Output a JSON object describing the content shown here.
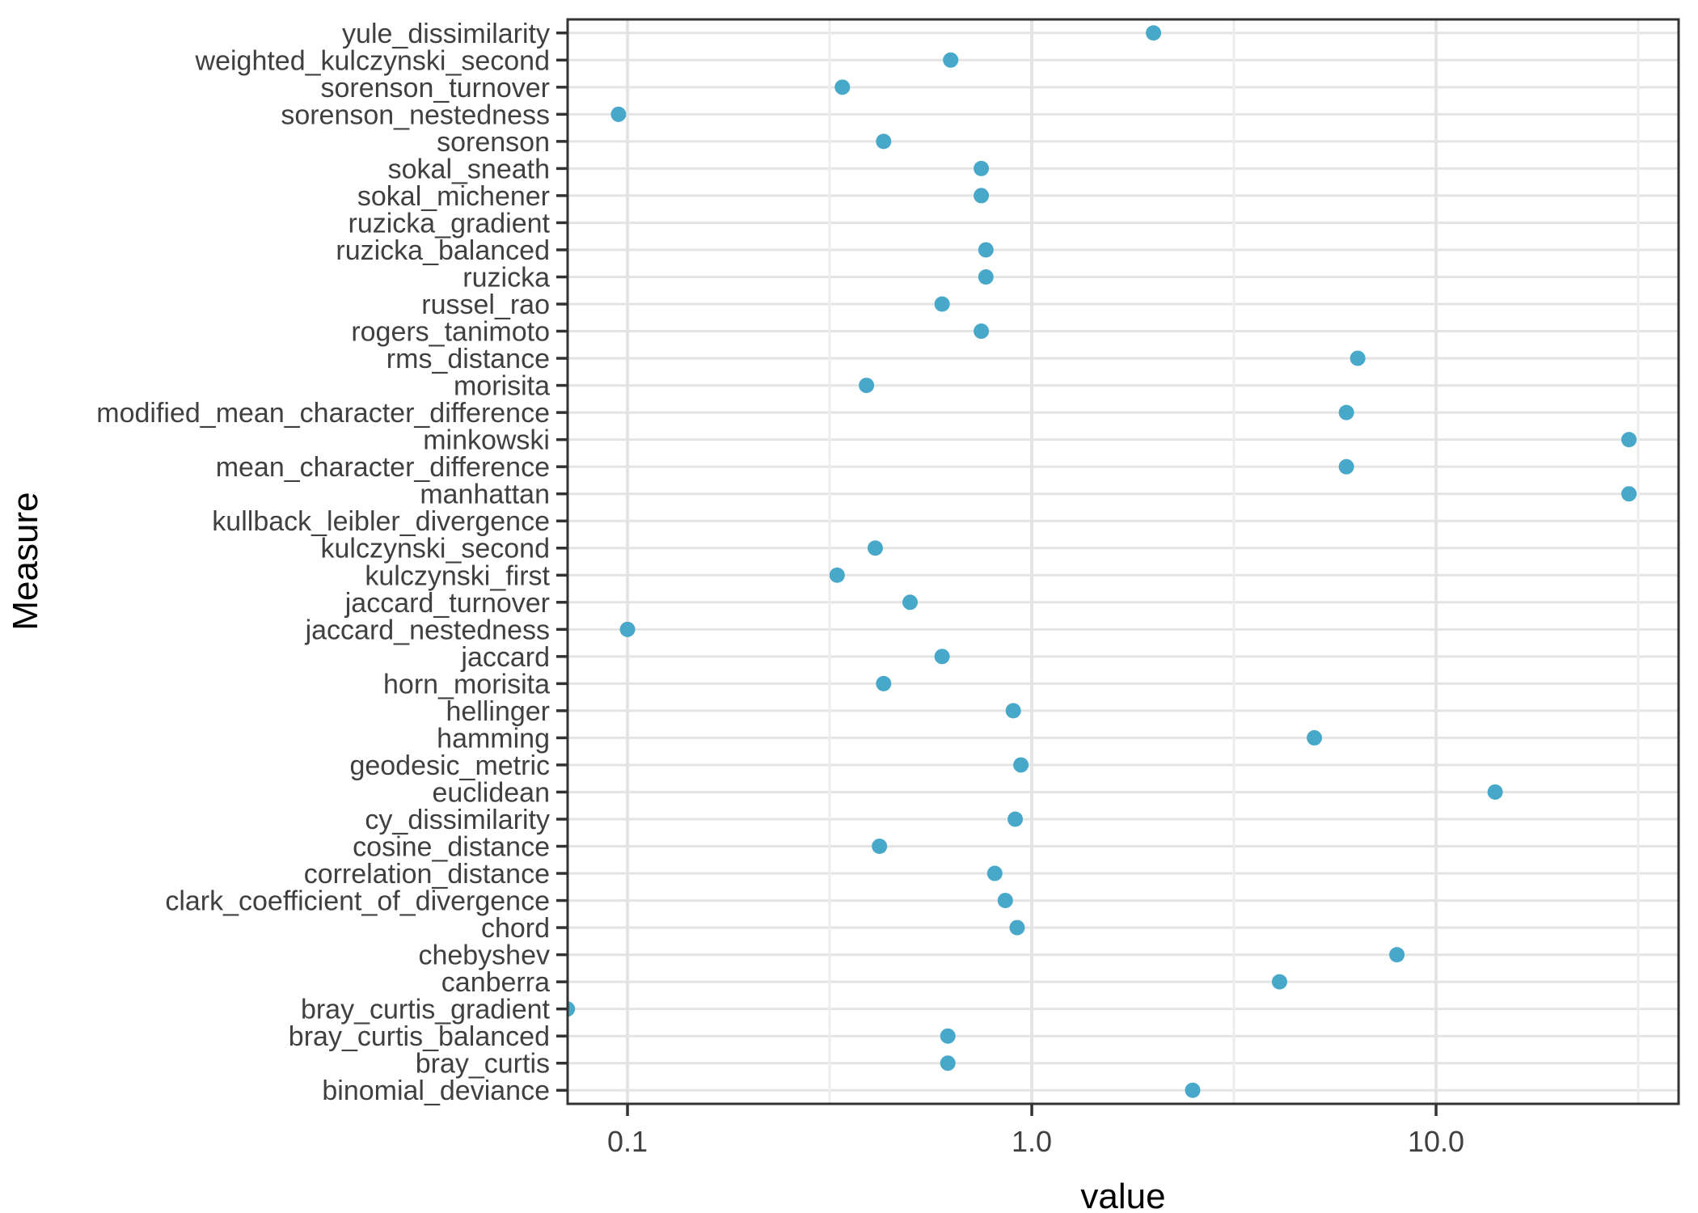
{
  "chart_data": {
    "type": "scatter",
    "variant": "horizontal-dot-plot",
    "title": "",
    "xlabel": "value",
    "ylabel": "Measure",
    "x_scale": "log10",
    "x_tick_labels": [
      "0.1",
      "1.0",
      "10.0"
    ],
    "x_tick_values": [
      0.1,
      1.0,
      10.0
    ],
    "x_minor_tick_values": [
      0.3162,
      3.162,
      31.62
    ],
    "x_range": [
      0.0711,
      39.8
    ],
    "grid": "major-and-minor",
    "legend": "none",
    "categories": [
      "yule_dissimilarity",
      "weighted_kulczynski_second",
      "sorenson_turnover",
      "sorenson_nestedness",
      "sorenson",
      "sokal_sneath",
      "sokal_michener",
      "ruzicka_gradient",
      "ruzicka_balanced",
      "ruzicka",
      "russel_rao",
      "rogers_tanimoto",
      "rms_distance",
      "morisita",
      "modified_mean_character_difference",
      "minkowski",
      "mean_character_difference",
      "manhattan",
      "kullback_leibler_divergence",
      "kulczynski_second",
      "kulczynski_first",
      "jaccard_turnover",
      "jaccard_nestedness",
      "jaccard",
      "horn_morisita",
      "hellinger",
      "hamming",
      "geodesic_metric",
      "euclidean",
      "cy_dissimilarity",
      "cosine_distance",
      "correlation_distance",
      "clark_coefficient_of_divergence",
      "chord",
      "chebyshev",
      "canberra",
      "bray_curtis_gradient",
      "bray_curtis_balanced",
      "bray_curtis",
      "binomial_deviance"
    ],
    "values": [
      2.0,
      0.63,
      0.34,
      0.095,
      0.43,
      0.75,
      0.75,
      null,
      0.77,
      0.77,
      0.6,
      0.75,
      6.4,
      0.39,
      6.0,
      30,
      6.0,
      30,
      null,
      0.41,
      0.33,
      0.5,
      0.1,
      0.6,
      0.43,
      0.9,
      5.0,
      0.94,
      14,
      0.91,
      0.42,
      0.81,
      0.86,
      0.92,
      8.0,
      4.1,
      0.071,
      0.62,
      0.62,
      2.5
    ],
    "colors": {
      "point": "#47A8C9",
      "panel_border": "#333333",
      "tick_mark": "#333333",
      "grid_major": "#E4E4E4",
      "grid_minor": "#EDEDED",
      "tick_text": "#404040",
      "title_text": "#000000",
      "background": "#FFFFFF"
    }
  }
}
